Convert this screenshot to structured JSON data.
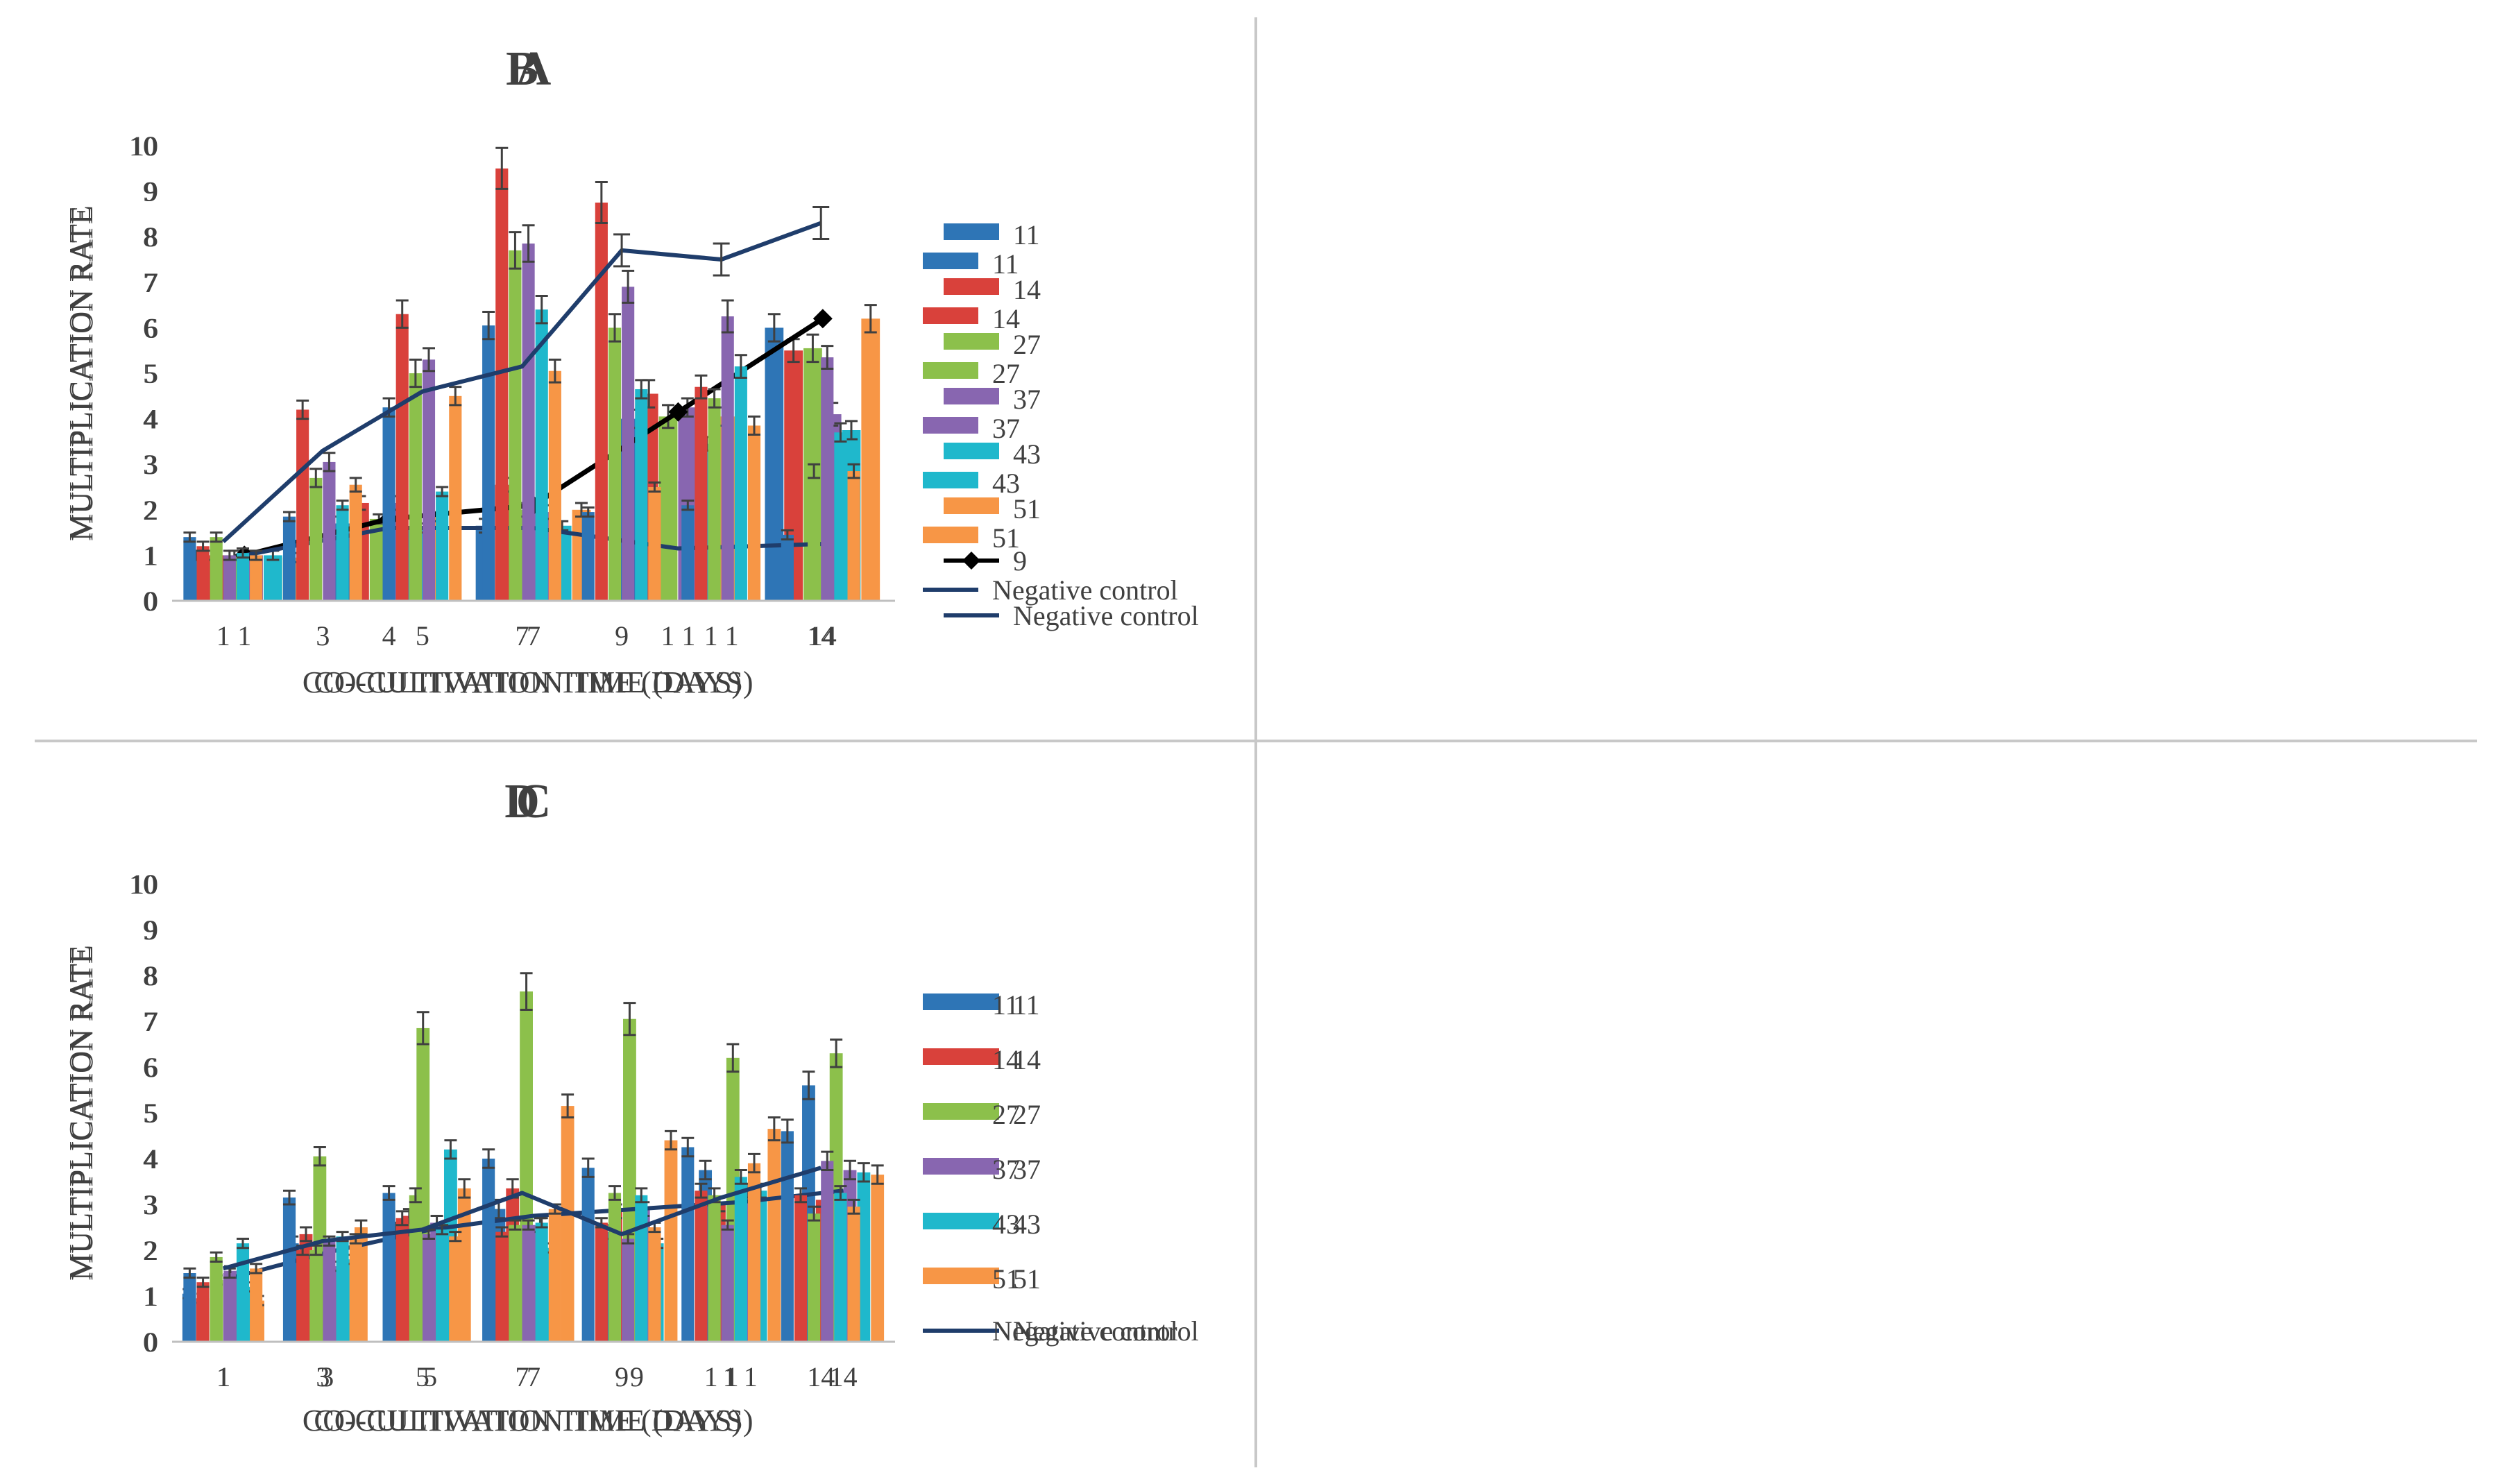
{
  "colors": {
    "11": "#2e75b6",
    "14": "#d9413b",
    "27": "#8cc04b",
    "37": "#8866b0",
    "43": "#1fb8cc",
    "51": "#f79646",
    "treatment_line": "#000000",
    "negative_control": "#1f3d6b",
    "error_bar": "#404040"
  },
  "chart_data": [
    {
      "id": "A",
      "type": "bar",
      "title": "A",
      "xlabel": "CO-CULTIVATION TIME (DAYS)",
      "ylabel": "MULTIPLICATION RATE",
      "ylim": [
        0,
        10
      ],
      "yticks": [
        0,
        1,
        2,
        3,
        4,
        5,
        6,
        7,
        8,
        9,
        10
      ],
      "grid": false,
      "legend_position": "right",
      "categories": [
        "1",
        "4",
        "7",
        "1 1",
        "14"
      ],
      "series": [
        {
          "name": "11",
          "values": [
            1.0,
            1.7,
            1.65,
            4.0,
            6.0
          ],
          "errors": [
            0.1,
            0.15,
            0.15,
            0.2,
            0.3
          ]
        },
        {
          "name": "14",
          "values": [
            1.0,
            2.15,
            2.55,
            4.55,
            5.5
          ],
          "errors": [
            0.1,
            0.15,
            0.15,
            0.3,
            0.25
          ]
        },
        {
          "name": "27",
          "values": [
            1.0,
            1.8,
            2.0,
            4.05,
            5.55
          ],
          "errors": [
            0.1,
            0.1,
            0.15,
            0.25,
            0.3
          ]
        },
        {
          "name": "37",
          "values": [
            1.0,
            2.15,
            1.95,
            4.25,
            4.1
          ],
          "errors": [
            0.1,
            0.15,
            0.15,
            0.2,
            0.25
          ]
        },
        {
          "name": "43",
          "values": [
            1.0,
            1.6,
            1.65,
            3.45,
            3.75
          ],
          "errors": [
            0.1,
            0.1,
            0.1,
            0.15,
            0.2
          ]
        },
        {
          "name": "51",
          "values": [
            0.95,
            1.85,
            2.0,
            4.05,
            6.2
          ],
          "errors": [
            0.1,
            0.1,
            0.15,
            0.2,
            0.3
          ]
        }
      ],
      "lines": [
        {
          "name": "9",
          "values": [
            1.0,
            1.8,
            2.1,
            4.15,
            6.2
          ],
          "color_key": "treatment_line",
          "marker": "diamond"
        },
        {
          "name": "Negative control",
          "values": [
            1.0,
            1.6,
            1.6,
            1.15,
            1.25
          ],
          "color_key": "negative_control",
          "marker": "none"
        }
      ]
    },
    {
      "id": "B",
      "type": "bar",
      "title": "B",
      "xlabel": "CO-CULTIVATION TIME (DAYS)",
      "ylabel": "MULTIPLICATION RATE",
      "ylim": [
        0,
        10
      ],
      "yticks": [
        0,
        1,
        2,
        3,
        4,
        5,
        6,
        7,
        8,
        9,
        10
      ],
      "grid": false,
      "legend_position": "right",
      "categories": [
        "1",
        "3",
        "5",
        "7",
        "9",
        "1 1",
        "14"
      ],
      "series": [
        {
          "name": "11",
          "values": [
            1.4,
            1.85,
            4.25,
            6.05,
            1.95,
            2.1,
            1.45
          ],
          "errors": [
            0.1,
            0.1,
            0.2,
            0.3,
            0.1,
            0.1,
            0.1
          ]
        },
        {
          "name": "14",
          "values": [
            1.2,
            4.2,
            6.3,
            9.5,
            8.75,
            4.7,
            0
          ],
          "errors": [
            0.1,
            0.2,
            0.3,
            0.45,
            0.45,
            0.25,
            0
          ]
        },
        {
          "name": "27",
          "values": [
            1.4,
            2.7,
            5.0,
            7.7,
            6.0,
            4.45,
            2.85
          ],
          "errors": [
            0.1,
            0.2,
            0.3,
            0.4,
            0.3,
            0.2,
            0.15
          ]
        },
        {
          "name": "37",
          "values": [
            1.0,
            3.05,
            5.3,
            7.85,
            6.9,
            6.25,
            5.35
          ],
          "errors": [
            0.1,
            0.2,
            0.25,
            0.4,
            0.35,
            0.35,
            0.25
          ]
        },
        {
          "name": "43",
          "values": [
            1.05,
            2.1,
            2.4,
            6.4,
            4.65,
            5.15,
            3.7
          ],
          "errors": [
            0.1,
            0.1,
            0.1,
            0.3,
            0.2,
            0.25,
            0.2
          ]
        },
        {
          "name": "51",
          "values": [
            1.0,
            2.55,
            4.5,
            5.05,
            2.5,
            3.85,
            2.85
          ],
          "errors": [
            0.1,
            0.15,
            0.2,
            0.25,
            0.1,
            0.2,
            0.15
          ]
        }
      ],
      "lines": [
        {
          "name": "Negative control",
          "values": [
            1.3,
            3.3,
            4.6,
            5.15,
            7.7,
            7.5,
            8.3
          ],
          "color_key": "negative_control",
          "marker": "none",
          "errors": [
            0,
            0,
            0,
            0,
            0.35,
            0.35,
            0.35
          ]
        }
      ]
    },
    {
      "id": "C",
      "type": "bar",
      "title": "C",
      "xlabel": "CO-CULTIVATION TIME (DAYS)",
      "ylabel": "MULTIPLICATION RATE",
      "ylim": [
        0,
        10
      ],
      "yticks": [
        0,
        1,
        2,
        3,
        4,
        5,
        6,
        7,
        8,
        9,
        10
      ],
      "grid": false,
      "legend_position": "right",
      "categories": [
        "1",
        "3",
        "5",
        "7",
        "9",
        "1 1",
        "14"
      ],
      "series": [
        {
          "name": "11",
          "values": [
            1.05,
            2.15,
            2.45,
            2.9,
            2.4,
            3.75,
            5.6
          ],
          "errors": [
            0.1,
            0.15,
            0.15,
            0.2,
            0.15,
            0.2,
            0.3
          ]
        },
        {
          "name": "14",
          "values": [
            0.95,
            2.35,
            2.75,
            3.35,
            2.85,
            3.0,
            3.1
          ],
          "errors": [
            0.1,
            0.15,
            0.15,
            0.2,
            0.15,
            0.15,
            0.15
          ]
        },
        {
          "name": "27",
          "values": [
            1.35,
            4.05,
            6.85,
            7.65,
            7.05,
            6.2,
            6.3
          ],
          "errors": [
            0.1,
            0.2,
            0.35,
            0.4,
            0.35,
            0.3,
            0.3
          ]
        },
        {
          "name": "37",
          "values": [
            1.55,
            1.65,
            2.6,
            2.55,
            2.9,
            3.3,
            3.75
          ],
          "errors": [
            0.1,
            0.1,
            0.15,
            0.15,
            0.15,
            0.15,
            0.2
          ]
        },
        {
          "name": "43",
          "values": [
            1.2,
            1.8,
            4.2,
            2.05,
            2.15,
            3.3,
            3.7
          ],
          "errors": [
            0.1,
            0.1,
            0.2,
            0.1,
            0.1,
            0.15,
            0.2
          ]
        },
        {
          "name": "51",
          "values": [
            0.9,
            2.5,
            3.35,
            5.15,
            4.4,
            4.65,
            3.65
          ],
          "errors": [
            0.1,
            0.15,
            0.2,
            0.25,
            0.2,
            0.25,
            0.2
          ]
        }
      ],
      "lines": [
        {
          "name": "Negative control",
          "values": [
            1.35,
            1.95,
            2.45,
            2.75,
            2.9,
            3.05,
            3.3
          ],
          "color_key": "negative_control",
          "marker": "none"
        }
      ]
    },
    {
      "id": "D",
      "type": "bar",
      "title": "D",
      "xlabel": "CO-CULTIVATION TIME (DAYS)",
      "ylabel": "MULTIPLICATION RATE",
      "ylim": [
        0,
        10
      ],
      "yticks": [
        0,
        1,
        2,
        3,
        4,
        5,
        6,
        7,
        8,
        9,
        10
      ],
      "grid": false,
      "legend_position": "right",
      "categories": [
        "1",
        "3",
        "5",
        "7",
        "9",
        "1 1",
        "14"
      ],
      "series": [
        {
          "name": "11",
          "values": [
            1.5,
            3.15,
            3.25,
            4.0,
            3.8,
            4.25,
            4.6
          ],
          "errors": [
            0.1,
            0.15,
            0.15,
            0.2,
            0.2,
            0.2,
            0.25
          ]
        },
        {
          "name": "14",
          "values": [
            1.3,
            2.0,
            2.7,
            2.4,
            2.6,
            3.3,
            3.2
          ],
          "errors": [
            0.1,
            0.1,
            0.15,
            0.1,
            0.1,
            0.15,
            0.15
          ]
        },
        {
          "name": "27",
          "values": [
            1.85,
            2.0,
            3.2,
            2.55,
            3.25,
            3.2,
            2.8
          ],
          "errors": [
            0.1,
            0.1,
            0.15,
            0.1,
            0.15,
            0.15,
            0.15
          ]
        },
        {
          "name": "37",
          "values": [
            1.5,
            2.2,
            2.35,
            2.55,
            2.25,
            2.55,
            3.95
          ],
          "errors": [
            0.1,
            0.1,
            0.1,
            0.1,
            0.1,
            0.1,
            0.2
          ]
        },
        {
          "name": "43",
          "values": [
            2.15,
            2.3,
            2.45,
            2.6,
            3.2,
            3.6,
            3.25
          ],
          "errors": [
            0.1,
            0.1,
            0.1,
            0.1,
            0.15,
            0.15,
            0.15
          ]
        },
        {
          "name": "51",
          "values": [
            1.6,
            2.25,
            2.3,
            2.9,
            2.5,
            3.9,
            2.95
          ],
          "errors": [
            0.1,
            0.1,
            0.1,
            0.1,
            0.1,
            0.2,
            0.15
          ]
        }
      ],
      "lines": [
        {
          "name": "Negative control",
          "values": [
            1.6,
            2.2,
            2.45,
            3.25,
            2.35,
            3.15,
            3.8
          ],
          "color_key": "negative_control",
          "marker": "none"
        }
      ]
    }
  ]
}
